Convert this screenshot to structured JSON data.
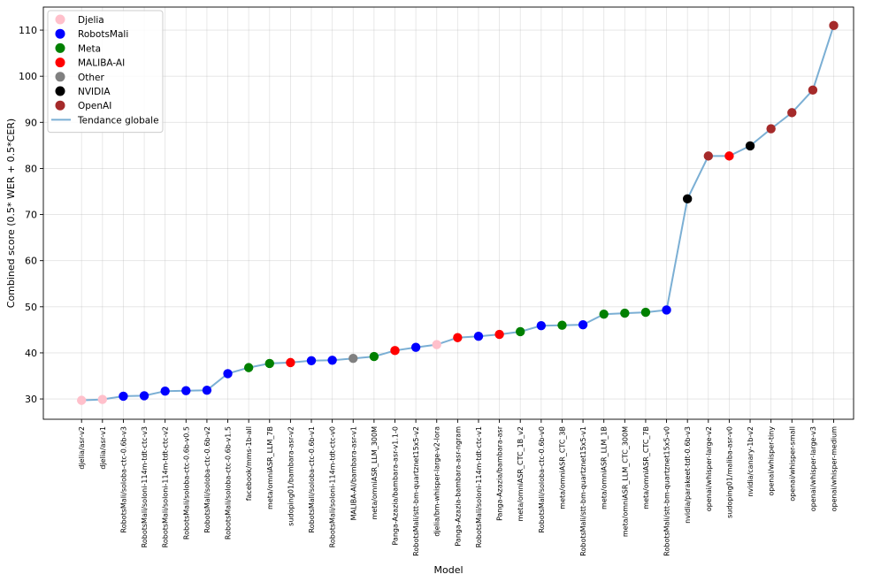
{
  "chart_data": {
    "type": "scatter",
    "title": "",
    "xlabel": "Model",
    "ylabel": "Combined score (0.5* WER + 0.5*CER)",
    "ylim": [
      25.6,
      115.0
    ],
    "yticks": [
      30,
      40,
      50,
      60,
      70,
      80,
      90,
      100,
      110
    ],
    "grid": true,
    "legend_position": "top-left",
    "categories": [
      "djelia/asr-v2",
      "djelia/asr-v1",
      "RobotsMali/soloba-ctc-0.6b-v3",
      "RobotsMali/soloni-114m-tdt-ctc-v3",
      "RobotsMali/soloni-114m-tdt-ctc-v2",
      "RobotsMali/soloba-ctc-0.6b-v0.5",
      "RobotsMali/soloba-ctc-0.6b-v2",
      "RobotsMali/soloba-ctc-0.6b-v1.5",
      "facebook/mms-1b-all",
      "meta/omniASR_LLM_7B",
      "sudoping01/bambara-asr-v2",
      "RobotsMali/soloba-ctc-0.6b-v1",
      "RobotsMali/soloni-114m-tdt-ctc-v0",
      "MALIBA-AI/bambara-asr-v1",
      "meta/omniASR_LLM_300M",
      "Panga-Azazia/bambara-asr-v1.1-0",
      "RobotsMali/stt-bm-quartznet15x5-v2",
      "djelia/bm-whisper-large-v2-lora",
      "Panga-Azazia-bambara-asr-ngram",
      "RobotsMali/soloni-114m-tdt-ctc-v1",
      "Panga-Azazia/bambara-asr",
      "meta/omniASR_CTC_1B_v2",
      "RobotsMali/soloba-ctc-0.6b-v0",
      "meta/omniASR_CTC_3B",
      "RobotsMali/stt-bm-quartznet15x5-v1",
      "meta/omniASR_LLM_1B",
      "meta/omniASR_LLM_CTC_300M",
      "meta/omniASR_CTC_7B",
      "RobotsMali/stt-bm-quartznet15x5-v0",
      "nvidia/parakeet-tdt-0.6b-v3",
      "openai/whisper-large-v2",
      "sudoping01/maliba-asr-v0",
      "nvidia/canary-1b-v2",
      "openai/whisper-tiny",
      "openai/whisper-small",
      "openai/whisper-large-v3",
      "openai/whisper-medium"
    ],
    "values": [
      29.7,
      29.9,
      30.6,
      30.7,
      31.7,
      31.8,
      31.9,
      35.5,
      36.8,
      37.7,
      37.9,
      38.3,
      38.4,
      38.8,
      39.2,
      40.5,
      41.2,
      41.8,
      43.3,
      43.6,
      44.0,
      44.6,
      45.9,
      46.0,
      46.1,
      48.4,
      48.6,
      48.8,
      49.3,
      73.4,
      82.7,
      82.7,
      84.9,
      88.6,
      92.1,
      97.0,
      111.0
    ],
    "groups": [
      "Djelia",
      "Djelia",
      "RobotsMali",
      "RobotsMali",
      "RobotsMali",
      "RobotsMali",
      "RobotsMali",
      "RobotsMali",
      "Meta",
      "Meta",
      "MALIBA-AI",
      "RobotsMali",
      "RobotsMali",
      "Other",
      "Meta",
      "MALIBA-AI",
      "RobotsMali",
      "Djelia",
      "MALIBA-AI",
      "RobotsMali",
      "MALIBA-AI",
      "Meta",
      "RobotsMali",
      "Meta",
      "RobotsMali",
      "Meta",
      "Meta",
      "Meta",
      "RobotsMali",
      "NVIDIA",
      "OpenAI",
      "MALIBA-AI",
      "NVIDIA",
      "OpenAI",
      "OpenAI",
      "OpenAI",
      "OpenAI"
    ],
    "legend": [
      {
        "name": "Djelia",
        "color": "#ffc0cb"
      },
      {
        "name": "RobotsMali",
        "color": "#0000ff"
      },
      {
        "name": "Meta",
        "color": "#008000"
      },
      {
        "name": "MALIBA-AI",
        "color": "#ff0000"
      },
      {
        "name": "Other",
        "color": "#808080"
      },
      {
        "name": "NVIDIA",
        "color": "#000000"
      },
      {
        "name": "OpenAI",
        "color": "#a52a2a"
      }
    ],
    "trend_line": {
      "name": "Tendance globale",
      "color": "#7bafd4"
    }
  }
}
